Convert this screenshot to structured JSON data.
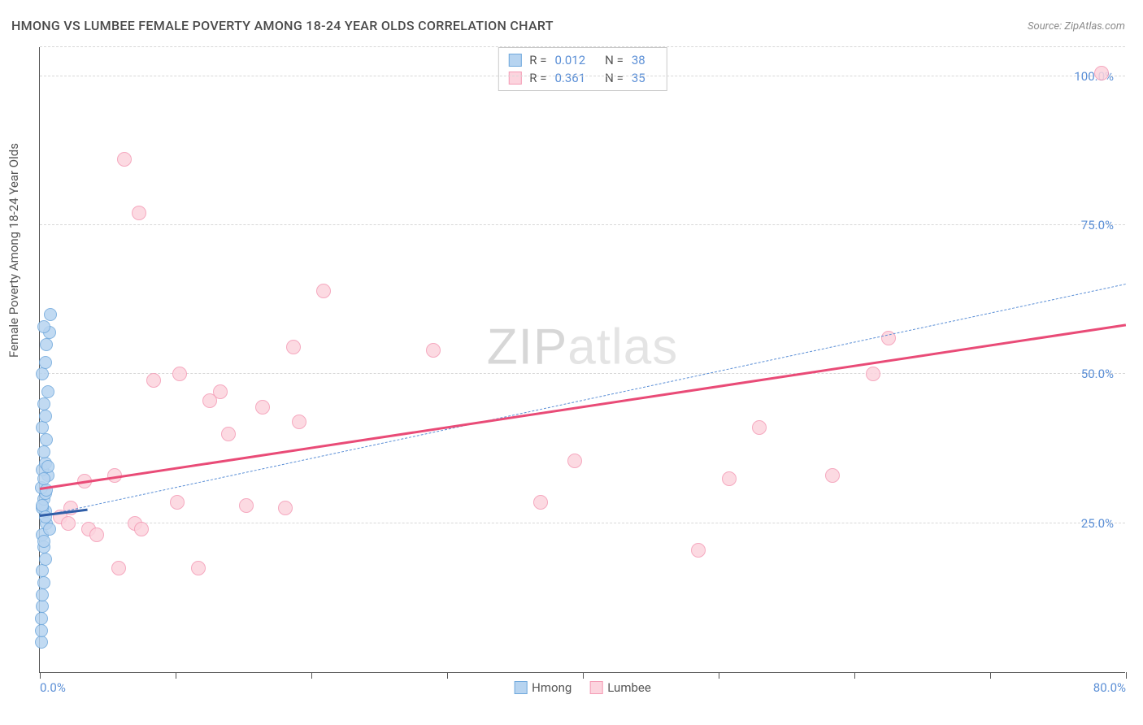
{
  "title": "HMONG VS LUMBEE FEMALE POVERTY AMONG 18-24 YEAR OLDS CORRELATION CHART",
  "source": "Source: ZipAtlas.com",
  "y_axis_label": "Female Poverty Among 18-24 Year Olds",
  "watermark_bold": "ZIP",
  "watermark_light": "atlas",
  "chart": {
    "type": "scatter",
    "xlim": [
      0,
      80
    ],
    "ylim": [
      0,
      105
    ],
    "x_ticks": [
      0,
      10,
      20,
      30,
      40,
      50,
      60,
      70,
      80
    ],
    "x_tick_labels": {
      "0": "0.0%",
      "80": "80.0%"
    },
    "y_ticks": [
      25,
      50,
      75,
      100
    ],
    "y_tick_labels": {
      "25": "25.0%",
      "50": "50.0%",
      "75": "75.0%",
      "100": "100.0%"
    },
    "grid_color": "#d8d8d8",
    "background_color": "#ffffff",
    "axis_color": "#555555",
    "tick_label_color": "#5b8fd6",
    "series": [
      {
        "name": "Hmong",
        "fill_color": "#b7d4f0",
        "stroke_color": "#6fa8dc",
        "marker_radius": 8,
        "r_value": "0.012",
        "n_value": "38",
        "trend": {
          "x1": 0,
          "y1": 26,
          "x2": 3.5,
          "y2": 27,
          "color": "#2f5ea8",
          "width": 3,
          "dash": false
        },
        "reference_line": {
          "x1": 0,
          "y1": 26,
          "x2": 80,
          "y2": 65,
          "color": "#5b8fd6",
          "width": 1.4,
          "dash": true
        },
        "points": [
          [
            0.1,
            5
          ],
          [
            0.1,
            7
          ],
          [
            0.1,
            9
          ],
          [
            0.2,
            11
          ],
          [
            0.2,
            13
          ],
          [
            0.3,
            15
          ],
          [
            0.2,
            17
          ],
          [
            0.4,
            19
          ],
          [
            0.3,
            21
          ],
          [
            0.2,
            23
          ],
          [
            0.5,
            25
          ],
          [
            0.4,
            27
          ],
          [
            0.2,
            27.5
          ],
          [
            0.3,
            29
          ],
          [
            0.4,
            30
          ],
          [
            0.1,
            31
          ],
          [
            0.6,
            33
          ],
          [
            0.2,
            34
          ],
          [
            0.4,
            35
          ],
          [
            0.3,
            37
          ],
          [
            0.5,
            39
          ],
          [
            0.2,
            41
          ],
          [
            0.4,
            43
          ],
          [
            0.3,
            45
          ],
          [
            0.6,
            47
          ],
          [
            0.2,
            50
          ],
          [
            0.4,
            52
          ],
          [
            0.5,
            55
          ],
          [
            0.7,
            57
          ],
          [
            0.3,
            58
          ],
          [
            0.8,
            60
          ],
          [
            0.2,
            28
          ],
          [
            0.5,
            30.5
          ],
          [
            0.3,
            32.5
          ],
          [
            0.6,
            34.5
          ],
          [
            0.4,
            26
          ],
          [
            0.7,
            24
          ],
          [
            0.3,
            22
          ]
        ]
      },
      {
        "name": "Lumbee",
        "fill_color": "#fcd4de",
        "stroke_color": "#f49bb5",
        "marker_radius": 9,
        "r_value": "0.361",
        "n_value": "35",
        "trend": {
          "x1": 0,
          "y1": 30.5,
          "x2": 80,
          "y2": 58,
          "color": "#e94b77",
          "width": 3,
          "dash": false
        },
        "points": [
          [
            1.5,
            26
          ],
          [
            2.3,
            27.5
          ],
          [
            2.1,
            25
          ],
          [
            3.6,
            24
          ],
          [
            3.3,
            32
          ],
          [
            4.2,
            23
          ],
          [
            5.5,
            33
          ],
          [
            5.8,
            17.5
          ],
          [
            6.2,
            86
          ],
          [
            7.0,
            25
          ],
          [
            7.3,
            77
          ],
          [
            8.4,
            49
          ],
          [
            10.1,
            28.5
          ],
          [
            10.3,
            50
          ],
          [
            11.7,
            17.5
          ],
          [
            12.5,
            45.5
          ],
          [
            13.3,
            47
          ],
          [
            13.9,
            40
          ],
          [
            15.2,
            28
          ],
          [
            16.4,
            44.5
          ],
          [
            18.1,
            27.5
          ],
          [
            18.7,
            54.5
          ],
          [
            19.1,
            42
          ],
          [
            20.9,
            64
          ],
          [
            29.0,
            54
          ],
          [
            36.9,
            28.5
          ],
          [
            39.4,
            35.5
          ],
          [
            48.5,
            20.5
          ],
          [
            50.8,
            32.5
          ],
          [
            53.0,
            41
          ],
          [
            58.4,
            33
          ],
          [
            61.4,
            50
          ],
          [
            62.5,
            56
          ],
          [
            78.2,
            100.5
          ],
          [
            7.5,
            24
          ]
        ]
      }
    ],
    "legend_bottom": [
      "Hmong",
      "Lumbee"
    ]
  }
}
